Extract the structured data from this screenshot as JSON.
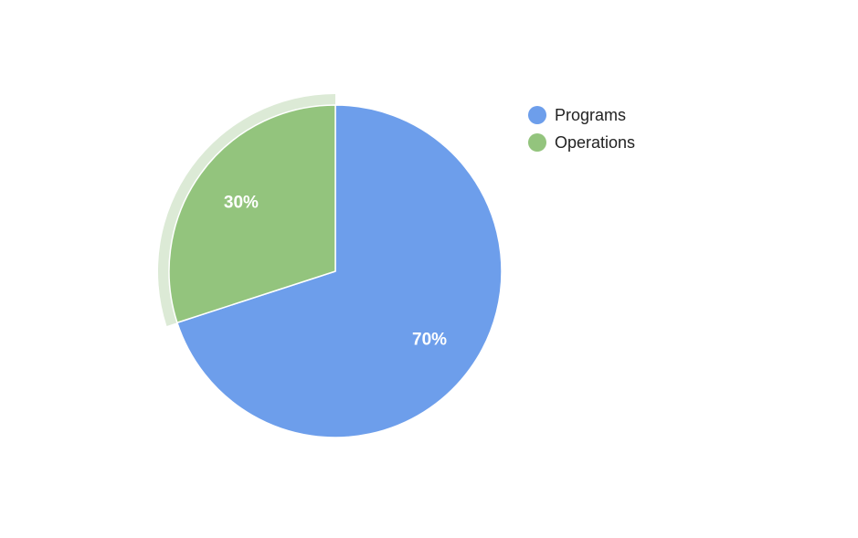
{
  "chart_data": {
    "type": "pie",
    "slices": [
      {
        "name": "Programs",
        "value": 70,
        "label": "70%",
        "color": "#6d9eeb",
        "highlighted": false
      },
      {
        "name": "Operations",
        "value": 30,
        "label": "30%",
        "color": "#93c47d",
        "highlighted": true,
        "halo_color": "#dcead6"
      }
    ],
    "legend": {
      "position": "right-top",
      "items": [
        {
          "label": "Programs",
          "color": "#6d9eeb"
        },
        {
          "label": "Operations",
          "color": "#93c47d"
        }
      ]
    },
    "title": ""
  }
}
